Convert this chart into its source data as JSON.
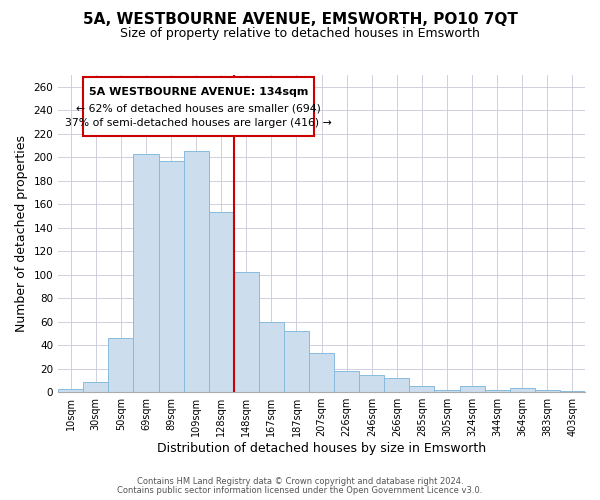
{
  "title": "5A, WESTBOURNE AVENUE, EMSWORTH, PO10 7QT",
  "subtitle": "Size of property relative to detached houses in Emsworth",
  "xlabel": "Distribution of detached houses by size in Emsworth",
  "ylabel": "Number of detached properties",
  "bar_labels": [
    "10sqm",
    "30sqm",
    "50sqm",
    "69sqm",
    "89sqm",
    "109sqm",
    "128sqm",
    "148sqm",
    "167sqm",
    "187sqm",
    "207sqm",
    "226sqm",
    "246sqm",
    "266sqm",
    "285sqm",
    "305sqm",
    "324sqm",
    "344sqm",
    "364sqm",
    "383sqm",
    "403sqm"
  ],
  "bar_values": [
    3,
    9,
    46,
    203,
    197,
    205,
    153,
    102,
    60,
    52,
    33,
    18,
    15,
    12,
    5,
    2,
    5,
    2,
    4,
    2,
    1
  ],
  "bar_color": "#ccdded",
  "bar_edgecolor": "#88bbdd",
  "highlight_index": 6,
  "highlight_line_color": "#cc0000",
  "ylim": [
    0,
    270
  ],
  "yticks": [
    0,
    20,
    40,
    60,
    80,
    100,
    120,
    140,
    160,
    180,
    200,
    220,
    240,
    260
  ],
  "annotation_title": "5A WESTBOURNE AVENUE: 134sqm",
  "annotation_line1": "← 62% of detached houses are smaller (694)",
  "annotation_line2": "37% of semi-detached houses are larger (416) →",
  "annotation_box_edgecolor": "#cc0000",
  "footer_line1": "Contains HM Land Registry data © Crown copyright and database right 2024.",
  "footer_line2": "Contains public sector information licensed under the Open Government Licence v3.0.",
  "bg_color": "#ffffff",
  "grid_color": "#c8c8d8",
  "title_fontsize": 11,
  "subtitle_fontsize": 9,
  "axis_label_fontsize": 9
}
